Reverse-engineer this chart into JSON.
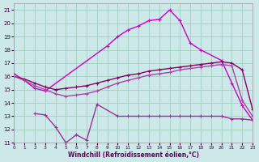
{
  "xlabel": "Windchill (Refroidissement éolien,°C)",
  "xlim": [
    0,
    23
  ],
  "ylim": [
    11,
    21.5
  ],
  "yticks": [
    11,
    12,
    13,
    14,
    15,
    16,
    17,
    18,
    19,
    20,
    21
  ],
  "xticks": [
    0,
    1,
    2,
    3,
    4,
    5,
    6,
    7,
    8,
    9,
    10,
    11,
    12,
    13,
    14,
    15,
    16,
    17,
    18,
    19,
    20,
    21,
    22,
    23
  ],
  "bg_color": "#cce8e8",
  "grid_color": "#99ccbb",
  "series": [
    {
      "x": [
        0,
        1,
        2,
        3,
        9,
        10,
        11,
        12,
        13,
        14,
        15,
        16,
        17,
        18,
        20,
        21,
        22,
        23
      ],
      "y": [
        16.2,
        15.7,
        15.1,
        14.9,
        18.3,
        19.0,
        19.5,
        19.8,
        20.2,
        20.3,
        21.0,
        20.2,
        18.5,
        18.0,
        17.2,
        15.5,
        13.8,
        12.7
      ],
      "color": "#cc00cc",
      "lw": 1.0
    },
    {
      "x": [
        0,
        1,
        2,
        3,
        4,
        5,
        6,
        7,
        8,
        9,
        10,
        11,
        12,
        13,
        14,
        15,
        16,
        17,
        18,
        19,
        20,
        21,
        22,
        23
      ],
      "y": [
        16.0,
        15.8,
        15.5,
        15.2,
        15.0,
        15.1,
        15.2,
        15.3,
        15.5,
        15.7,
        15.9,
        16.1,
        16.2,
        16.4,
        16.5,
        16.6,
        16.7,
        16.8,
        16.9,
        17.0,
        17.1,
        17.0,
        16.5,
        13.5
      ],
      "color": "#880066",
      "lw": 1.0
    },
    {
      "x": [
        0,
        1,
        2,
        3,
        4,
        5,
        6,
        7,
        8,
        9,
        10,
        11,
        12,
        13,
        14,
        15,
        16,
        17,
        18,
        19,
        20,
        21,
        22,
        23
      ],
      "y": [
        16.0,
        15.7,
        15.3,
        15.0,
        14.7,
        14.5,
        14.6,
        14.7,
        14.9,
        15.2,
        15.5,
        15.7,
        15.9,
        16.1,
        16.2,
        16.3,
        16.5,
        16.6,
        16.7,
        16.8,
        16.9,
        16.8,
        14.2,
        13.0
      ],
      "color": "#aa44aa",
      "lw": 1.0
    },
    {
      "x": [
        2,
        3,
        4,
        5,
        6,
        7,
        8,
        10,
        11,
        12,
        13,
        14,
        15,
        16,
        17,
        18,
        19,
        20,
        21,
        22,
        23
      ],
      "y": [
        13.2,
        13.1,
        12.2,
        11.0,
        11.6,
        11.2,
        13.9,
        13.0,
        13.0,
        13.0,
        13.0,
        13.0,
        13.0,
        13.0,
        13.0,
        13.0,
        13.0,
        13.0,
        12.8,
        12.8,
        12.7
      ],
      "color": "#993399",
      "lw": 1.0
    }
  ]
}
